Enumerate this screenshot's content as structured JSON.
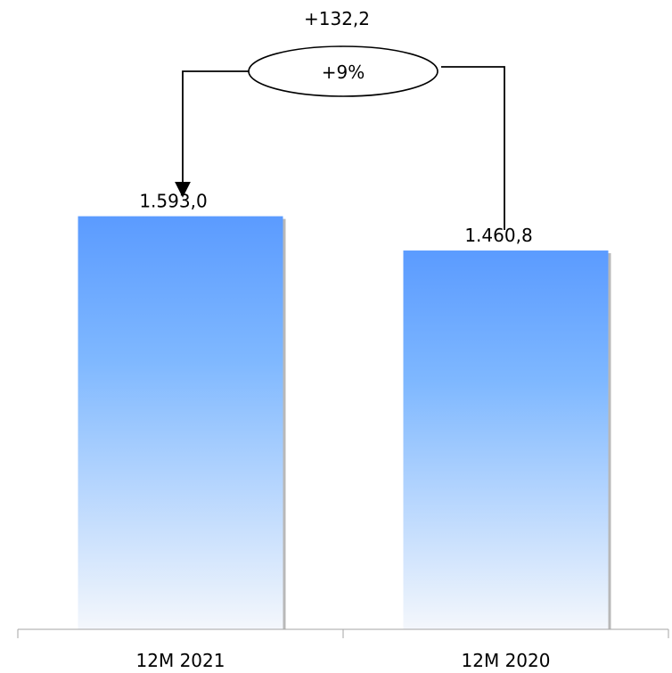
{
  "chart_data": {
    "type": "bar",
    "categories": [
      "12M 2021",
      "12M 2020"
    ],
    "values": [
      1593.0,
      1460.8
    ],
    "data_labels": [
      "1.593,0",
      "1.460,8"
    ],
    "title": "",
    "xlabel": "",
    "ylabel": "",
    "ylim": [
      0,
      1650
    ],
    "grid": false,
    "legend": "none",
    "bar_gradient": [
      "#5b9bff",
      "#7fb8ff",
      "#f4f7fc"
    ],
    "bar_shadow_color": "#b8b8b8",
    "comparison": {
      "difference_label": "+132,2",
      "percent_label": "+9%",
      "arrow_direction": "from 12M 2020 to 12M 2021"
    }
  }
}
